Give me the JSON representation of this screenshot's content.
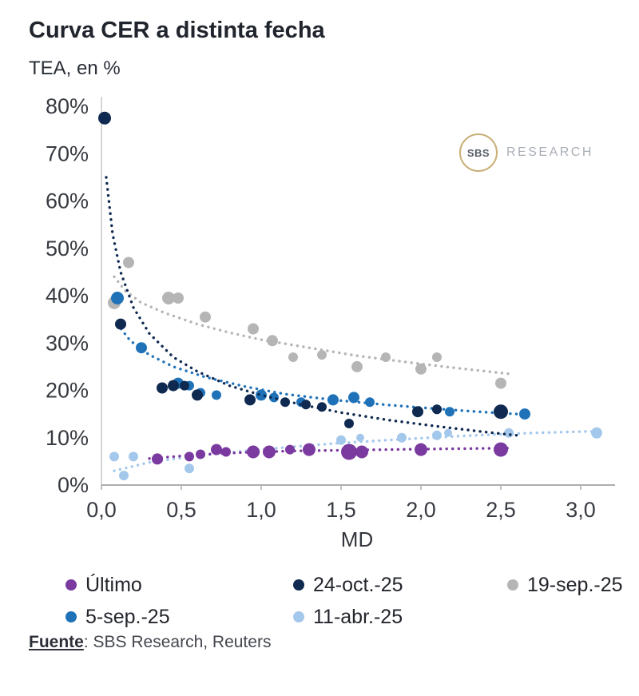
{
  "title": "Curva CER a distinta fecha",
  "subtitle": "TEA, en %",
  "logo": {
    "circle_text": "SBS",
    "right_text": "RESEARCH"
  },
  "source": {
    "label": "Fuente",
    "text": ": SBS Research, Reuters"
  },
  "chart_data": {
    "type": "scatter",
    "title": "Curva CER a distinta fecha",
    "xlabel": "MD",
    "ylabel": "TEA, en %",
    "xlim": [
      0,
      3.2
    ],
    "ylim": [
      0,
      80
    ],
    "grid": false,
    "legend_position": "bottom",
    "xticks": [
      "0,0",
      "0,5",
      "1,0",
      "1,5",
      "2,0",
      "2,5",
      "3,0"
    ],
    "xtick_values": [
      0,
      0.5,
      1.0,
      1.5,
      2.0,
      2.5,
      3.0
    ],
    "yticks": [
      "0%",
      "10%",
      "20%",
      "30%",
      "40%",
      "50%",
      "60%",
      "70%",
      "80%"
    ],
    "ytick_values": [
      0,
      10,
      20,
      30,
      40,
      50,
      60,
      70,
      80
    ],
    "series": [
      {
        "name": "Último",
        "color": "#7a3aa0",
        "points": [
          [
            0.35,
            5.5,
            7
          ],
          [
            0.55,
            6,
            6
          ],
          [
            0.62,
            6.5,
            6
          ],
          [
            0.72,
            7.5,
            7
          ],
          [
            0.78,
            7,
            6
          ],
          [
            0.95,
            7,
            8
          ],
          [
            1.05,
            7,
            8
          ],
          [
            1.18,
            7.5,
            6
          ],
          [
            1.3,
            7.5,
            8
          ],
          [
            1.55,
            7,
            10
          ],
          [
            1.63,
            7,
            8
          ],
          [
            2.0,
            7.5,
            8
          ],
          [
            2.5,
            7.5,
            9
          ]
        ],
        "trend": [
          [
            0.3,
            5.6
          ],
          [
            0.6,
            6.4
          ],
          [
            0.9,
            6.9
          ],
          [
            1.2,
            7.2
          ],
          [
            1.6,
            7.4
          ],
          [
            2.0,
            7.6
          ],
          [
            2.55,
            7.8
          ]
        ]
      },
      {
        "name": "24-oct.-25",
        "color": "#0f2950",
        "points": [
          [
            0.02,
            77.5,
            8
          ],
          [
            0.12,
            34,
            7
          ],
          [
            0.38,
            20.5,
            7
          ],
          [
            0.45,
            21,
            7
          ],
          [
            0.52,
            21,
            6
          ],
          [
            0.6,
            19,
            7
          ],
          [
            0.93,
            18,
            7
          ],
          [
            1.15,
            17.5,
            6
          ],
          [
            1.28,
            17,
            6
          ],
          [
            1.38,
            16.5,
            6
          ],
          [
            1.55,
            13,
            6
          ],
          [
            1.98,
            15.5,
            7
          ],
          [
            2.1,
            16,
            6
          ],
          [
            2.5,
            15.5,
            9
          ]
        ],
        "trend": [
          [
            0.03,
            65
          ],
          [
            0.07,
            53
          ],
          [
            0.12,
            45
          ],
          [
            0.2,
            37.5
          ],
          [
            0.3,
            32
          ],
          [
            0.45,
            27
          ],
          [
            0.6,
            24
          ],
          [
            0.8,
            21
          ],
          [
            1.0,
            19
          ],
          [
            1.25,
            17
          ],
          [
            1.5,
            15.3
          ],
          [
            1.8,
            13.7
          ],
          [
            2.1,
            12.4
          ],
          [
            2.4,
            11.2
          ],
          [
            2.6,
            10.5
          ]
        ]
      },
      {
        "name": "19-sep.-25",
        "color": "#b5b5b5",
        "points": [
          [
            0.08,
            38.5,
            8
          ],
          [
            0.17,
            47,
            7
          ],
          [
            0.42,
            39.5,
            8
          ],
          [
            0.48,
            39.5,
            7
          ],
          [
            0.65,
            35.5,
            7
          ],
          [
            0.95,
            33,
            7
          ],
          [
            1.07,
            30.5,
            7
          ],
          [
            1.2,
            27,
            6
          ],
          [
            1.38,
            27.5,
            6
          ],
          [
            1.6,
            25,
            7
          ],
          [
            1.78,
            27,
            6
          ],
          [
            2.0,
            24.5,
            7
          ],
          [
            2.1,
            27,
            6
          ],
          [
            2.5,
            21.5,
            7
          ]
        ],
        "trend": [
          [
            0.08,
            44
          ],
          [
            0.15,
            41
          ],
          [
            0.25,
            38.5
          ],
          [
            0.4,
            36.3
          ],
          [
            0.6,
            34
          ],
          [
            0.8,
            32.2
          ],
          [
            1.0,
            30.7
          ],
          [
            1.3,
            29
          ],
          [
            1.6,
            27.3
          ],
          [
            1.9,
            26
          ],
          [
            2.2,
            24.8
          ],
          [
            2.55,
            23.5
          ]
        ]
      },
      {
        "name": "5-sep.-25",
        "color": "#1f72b8",
        "points": [
          [
            0.1,
            39.5,
            8
          ],
          [
            0.25,
            29,
            7
          ],
          [
            0.48,
            21.5,
            7
          ],
          [
            0.55,
            21,
            6
          ],
          [
            0.62,
            19.5,
            6
          ],
          [
            0.72,
            19,
            6
          ],
          [
            1.0,
            19,
            7
          ],
          [
            1.08,
            18.5,
            6
          ],
          [
            1.25,
            17.5,
            6
          ],
          [
            1.45,
            18,
            7
          ],
          [
            1.58,
            18.5,
            7
          ],
          [
            1.68,
            17.5,
            6
          ],
          [
            2.1,
            16,
            6
          ],
          [
            2.18,
            15.5,
            6
          ],
          [
            2.65,
            15,
            7
          ]
        ],
        "trend": [
          [
            0.1,
            34
          ],
          [
            0.18,
            30.5
          ],
          [
            0.3,
            27.5
          ],
          [
            0.45,
            25
          ],
          [
            0.65,
            22.8
          ],
          [
            0.9,
            20.8
          ],
          [
            1.15,
            19.2
          ],
          [
            1.45,
            18
          ],
          [
            1.8,
            16.9
          ],
          [
            2.1,
            16.1
          ],
          [
            2.4,
            15.4
          ],
          [
            2.65,
            14.9
          ]
        ]
      },
      {
        "name": "11-abr.-25",
        "color": "#a4c8eb",
        "points": [
          [
            0.08,
            6,
            6
          ],
          [
            0.14,
            2,
            6
          ],
          [
            0.2,
            6,
            6
          ],
          [
            0.55,
            3.5,
            6
          ],
          [
            1.5,
            9.5,
            6
          ],
          [
            1.62,
            10,
            5
          ],
          [
            1.88,
            10,
            6
          ],
          [
            2.1,
            10.5,
            6
          ],
          [
            2.17,
            11,
            5
          ],
          [
            2.55,
            11,
            6
          ],
          [
            3.1,
            11,
            7
          ]
        ],
        "trend": [
          [
            0.08,
            3
          ],
          [
            0.3,
            4.8
          ],
          [
            0.6,
            6.2
          ],
          [
            0.9,
            7.2
          ],
          [
            1.2,
            8.1
          ],
          [
            1.5,
            8.9
          ],
          [
            1.8,
            9.5
          ],
          [
            2.1,
            10.1
          ],
          [
            2.4,
            10.6
          ],
          [
            2.7,
            11
          ],
          [
            3.12,
            11.4
          ]
        ]
      }
    ]
  }
}
